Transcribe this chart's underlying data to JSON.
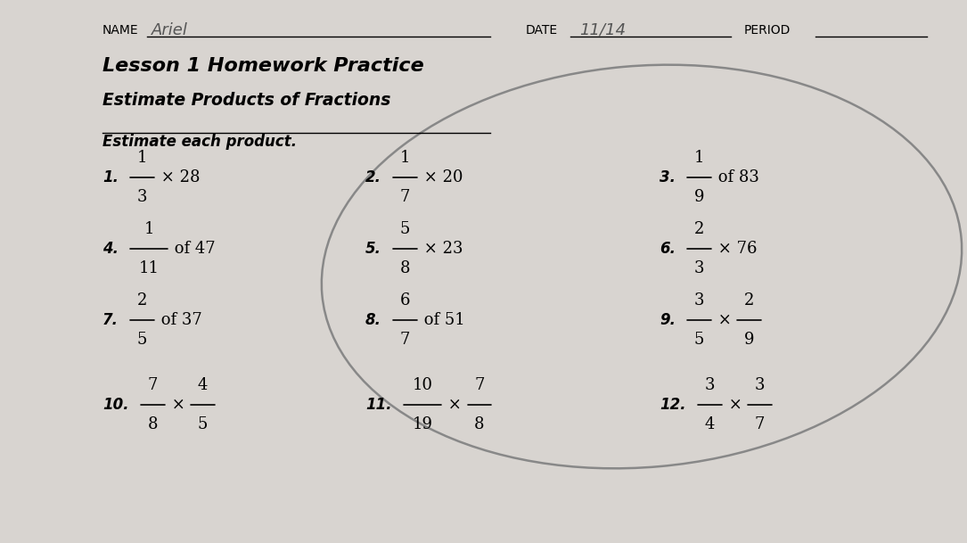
{
  "bg_color": "#d8d4d0",
  "title1": "Lesson 1 Homework Practice",
  "title2": "Estimate Products of Fractions",
  "instruction": "Estimate each product.",
  "name_label": "NAME",
  "name_value": "Ariel",
  "date_label": "DATE",
  "date_value": "11/14",
  "period_label": "PERIOD",
  "problems": [
    {
      "num": "1.",
      "parts": [
        {
          "type": "frac",
          "n": "1",
          "d": "3"
        },
        {
          "type": "text",
          "t": " × 28"
        }
      ]
    },
    {
      "num": "2.",
      "parts": [
        {
          "type": "frac",
          "n": "1",
          "d": "7"
        },
        {
          "type": "text",
          "t": " × 20"
        }
      ]
    },
    {
      "num": "3.",
      "parts": [
        {
          "type": "frac",
          "n": "1",
          "d": "9"
        },
        {
          "type": "text",
          "t": " of 83"
        }
      ]
    },
    {
      "num": "4.",
      "parts": [
        {
          "type": "frac",
          "n": "1",
          "d": "11"
        },
        {
          "type": "text",
          "t": " of 47"
        }
      ]
    },
    {
      "num": "5.",
      "parts": [
        {
          "type": "frac",
          "n": "5",
          "d": "8"
        },
        {
          "type": "text",
          "t": " × 23"
        }
      ]
    },
    {
      "num": "6.",
      "parts": [
        {
          "type": "frac",
          "n": "2",
          "d": "3"
        },
        {
          "type": "text",
          "t": " × 76"
        }
      ]
    },
    {
      "num": "7.",
      "parts": [
        {
          "type": "frac",
          "n": "2",
          "d": "5"
        },
        {
          "type": "text",
          "t": " of 37"
        }
      ]
    },
    {
      "num": "8.",
      "parts": [
        {
          "type": "frac",
          "n": "6",
          "d": "7"
        },
        {
          "type": "text",
          "t": " of 51"
        }
      ]
    },
    {
      "num": "9.",
      "parts": [
        {
          "type": "frac",
          "n": "3",
          "d": "5"
        },
        {
          "type": "text",
          "t": " × "
        },
        {
          "type": "frac",
          "n": "2",
          "d": "9"
        }
      ]
    },
    {
      "num": "10.",
      "parts": [
        {
          "type": "frac",
          "n": "7",
          "d": "8"
        },
        {
          "type": "text",
          "t": " × "
        },
        {
          "type": "frac",
          "n": "4",
          "d": "5"
        }
      ]
    },
    {
      "num": "11.",
      "parts": [
        {
          "type": "frac",
          "n": "10",
          "d": "19"
        },
        {
          "type": "text",
          "t": " × "
        },
        {
          "type": "frac",
          "n": "7",
          "d": "8"
        }
      ]
    },
    {
      "num": "12.",
      "parts": [
        {
          "type": "frac",
          "n": "3",
          "d": "4"
        },
        {
          "type": "text",
          "t": " × "
        },
        {
          "type": "frac",
          "n": "3",
          "d": "7"
        }
      ]
    }
  ]
}
